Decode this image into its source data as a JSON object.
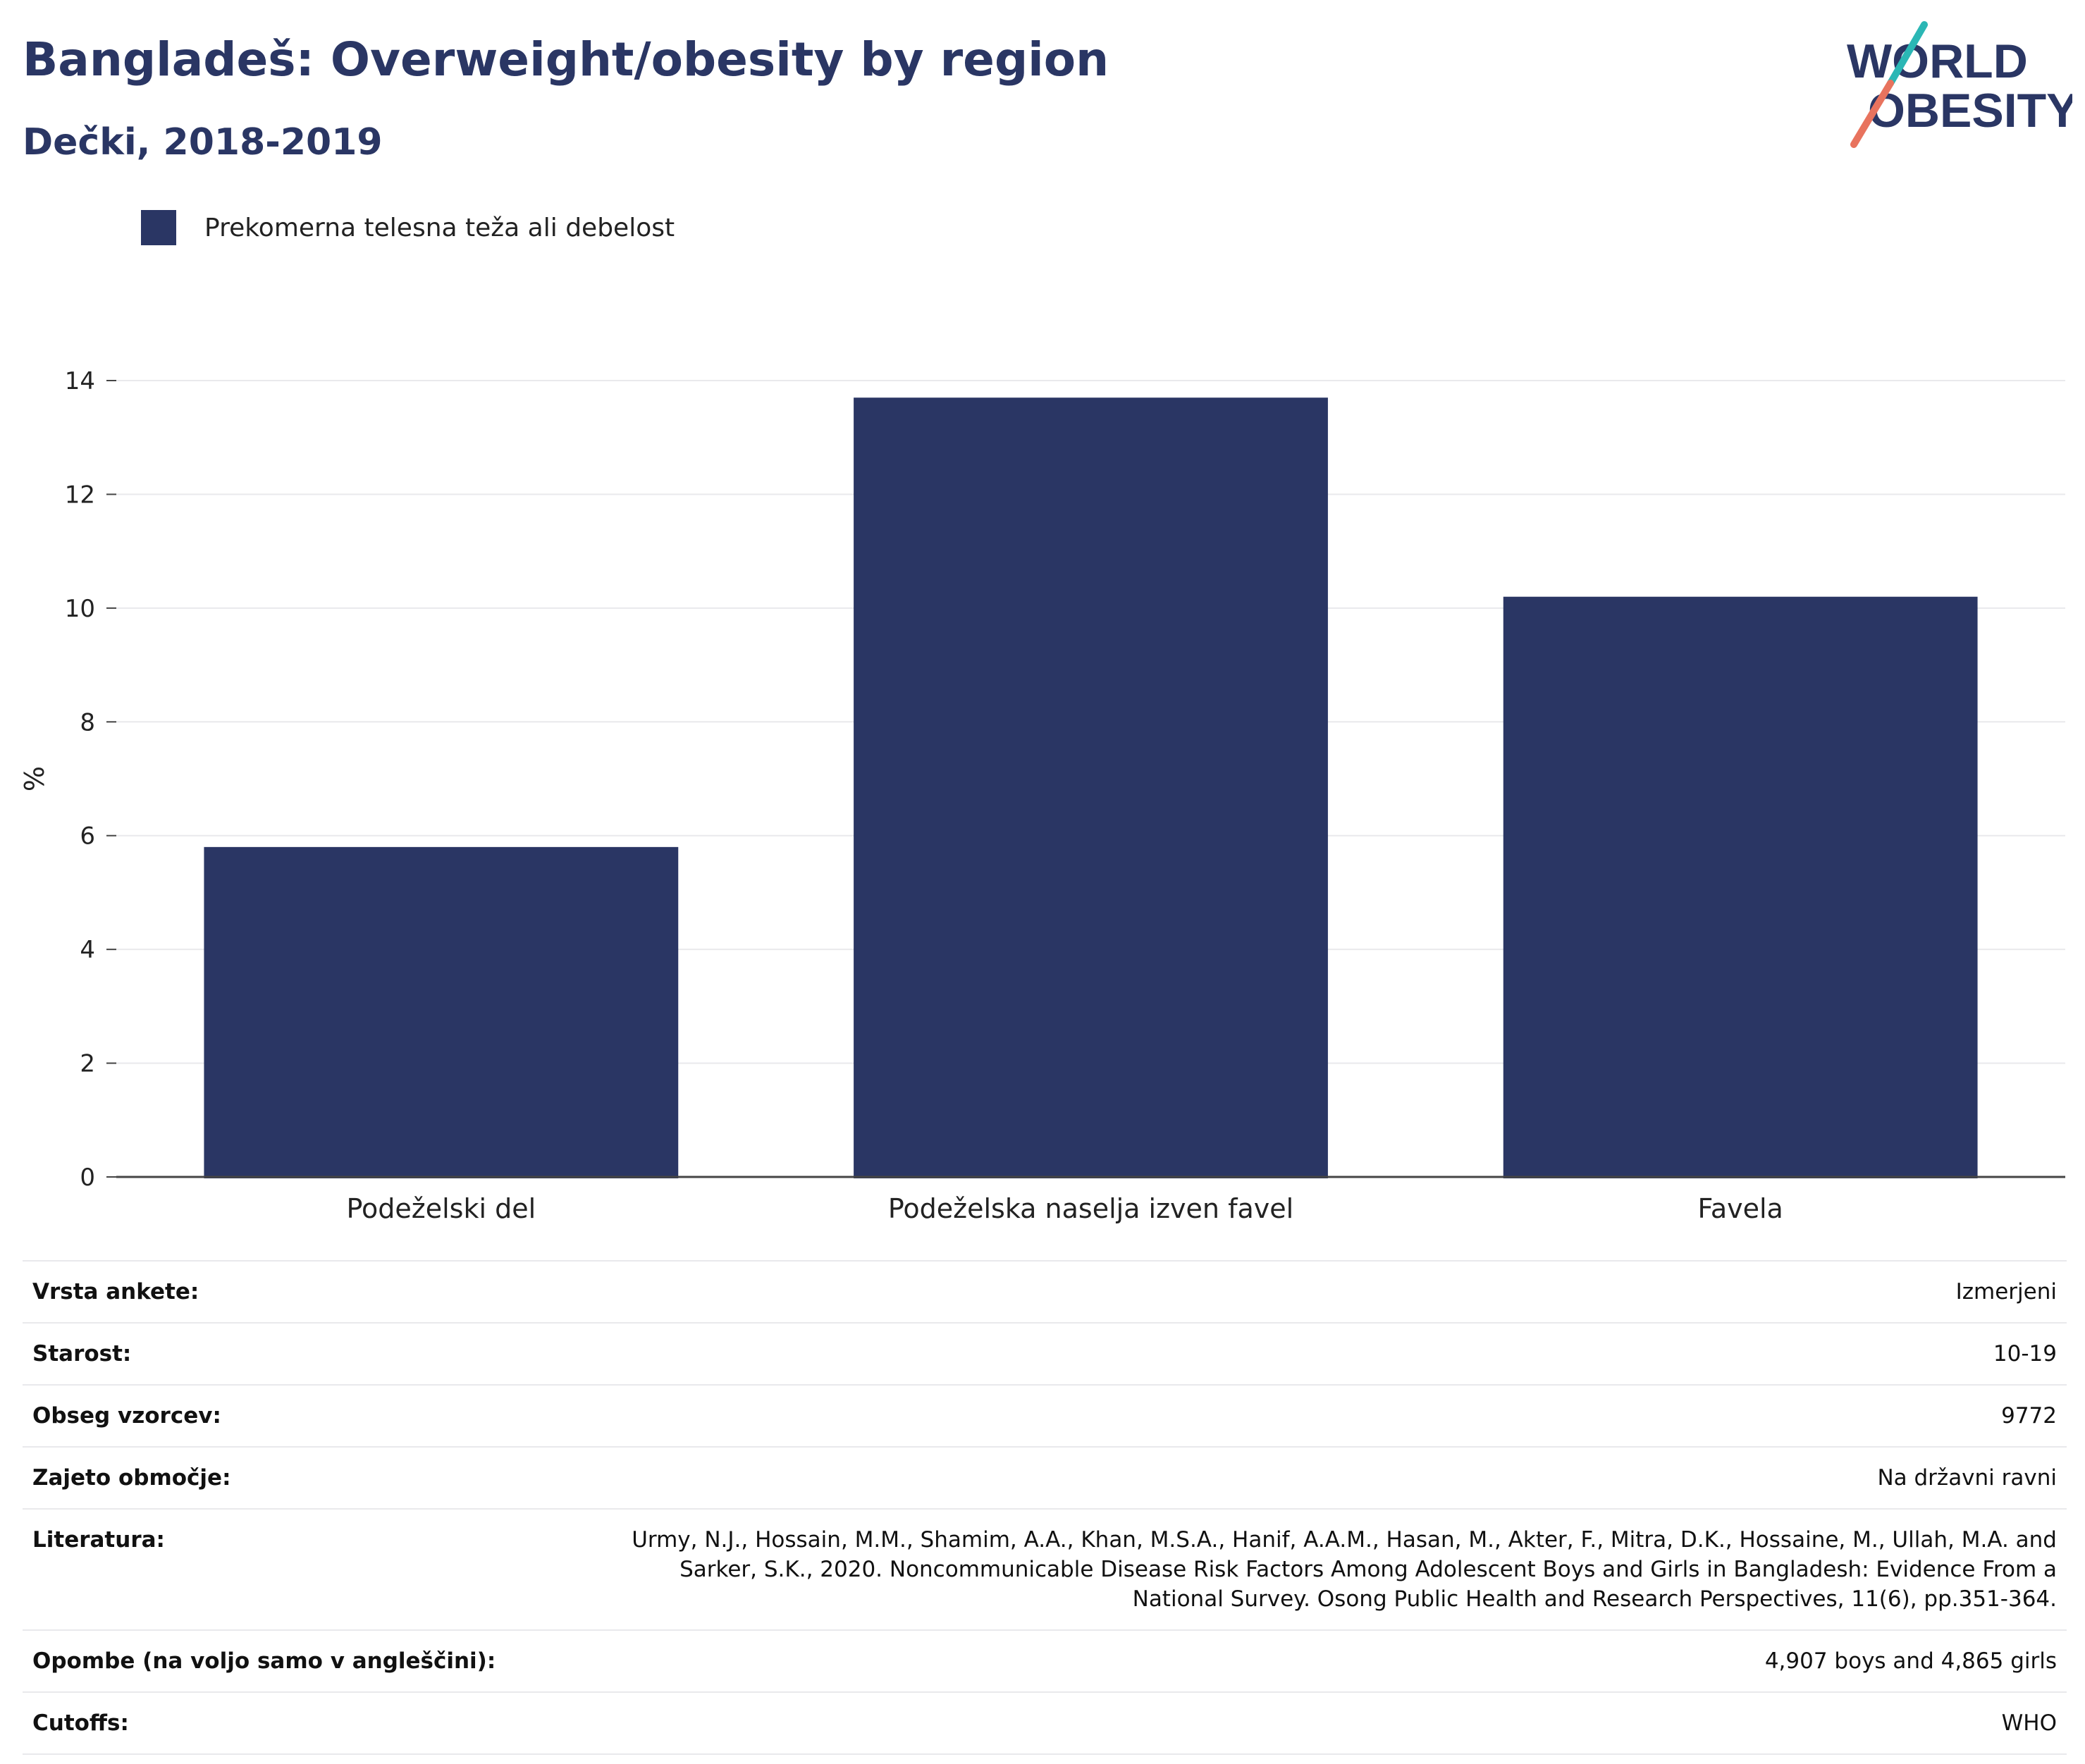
{
  "header": {
    "title": "Bangladeš: Overweight/obesity by region",
    "subtitle": "Dečki, 2018-2019"
  },
  "logo": {
    "line1": "WORLD",
    "line2": "OBESITY",
    "text_color": "#2a3664",
    "accent_red": "#e8735e",
    "accent_teal": "#2bb7b5"
  },
  "legend": {
    "label": "Prekomerna telesna teža ali debelost",
    "color": "#2a3664"
  },
  "chart_data": {
    "type": "bar",
    "categories": [
      "Podeželski del",
      "Podeželska naselja izven favel",
      "Favela"
    ],
    "series": [
      {
        "name": "Prekomerna telesna teža ali debelost",
        "values": [
          5.8,
          13.7,
          10.2
        ],
        "color": "#2a3664"
      }
    ],
    "ylabel": "%",
    "ylim": [
      0,
      14
    ],
    "yticks": [
      0,
      2,
      4,
      6,
      8,
      10,
      12,
      14
    ],
    "grid": true,
    "legend_position": "top-left"
  },
  "meta": [
    {
      "key": "Vrsta ankete:",
      "value": "Izmerjeni"
    },
    {
      "key": "Starost:",
      "value": "10-19"
    },
    {
      "key": "Obseg vzorcev:",
      "value": "9772"
    },
    {
      "key": "Zajeto območje:",
      "value": "Na državni ravni"
    },
    {
      "key": "Literatura:",
      "value": "Urmy, N.J., Hossain, M.M., Shamim, A.A., Khan, M.S.A., Hanif, A.A.M., Hasan, M., Akter, F., Mitra, D.K., Hossaine, M., Ullah, M.A. and Sarker, S.K., 2020. Noncommunicable Disease Risk Factors Among Adolescent Boys and Girls in Bangladesh: Evidence From a National Survey. Osong Public Health and Research Perspectives, 11(6), pp.351-364."
    },
    {
      "key": "Opombe (na voljo samo v angleščini):",
      "value": "4,907 boys and 4,865 girls"
    },
    {
      "key": "Cutoffs:",
      "value": "WHO"
    }
  ]
}
